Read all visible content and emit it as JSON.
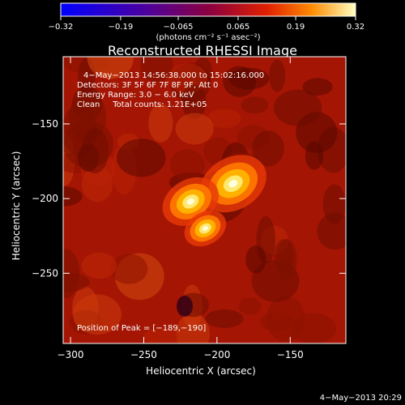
{
  "chart_data": {
    "type": "heatmap",
    "title": "Reconstructed RHESSI Image",
    "xlabel": "Heliocentric X (arcsec)",
    "ylabel": "Heliocentric Y (arcsec)",
    "xlim": [
      -305,
      -112
    ],
    "ylim": [
      -297,
      -105
    ],
    "xticks": [
      -300,
      -250,
      -200,
      -150
    ],
    "yticks": [
      -150,
      -200,
      -250
    ],
    "xtick_labels": [
      "−300",
      "−250",
      "−200",
      "−150"
    ],
    "ytick_labels": [
      "−150",
      "−200",
      "−250"
    ],
    "colorbar": {
      "range": [
        -0.32,
        0.32
      ],
      "ticks": [
        -0.32,
        -0.19,
        -0.065,
        0.065,
        0.19,
        0.32
      ],
      "tick_labels": [
        "−0.32",
        "−0.19",
        "−0.065",
        "0.065",
        "0.19",
        "0.32"
      ],
      "label": "(photons cm⁻² s⁻¹ asec⁻²)"
    },
    "annotations": {
      "time_range": "4−May−2013 14:56:38.000 to 15:02:16.000",
      "detectors": "Detectors: 3F 5F 6F 7F 8F 9F, Att 0",
      "energy": "Energy Range: 3.0 − 6.0 keV",
      "clean": "Clean     Total counts: 1.21E+05",
      "peak": "Position of Peak = [−189,−190]"
    },
    "sources": [
      {
        "x": -189,
        "y": -190,
        "intensity": 0.32
      },
      {
        "x": -218,
        "y": -202,
        "intensity": 0.27
      },
      {
        "x": -208,
        "y": -220,
        "intensity": 0.2
      }
    ],
    "footer_date": "4−May−2013 20:29"
  }
}
